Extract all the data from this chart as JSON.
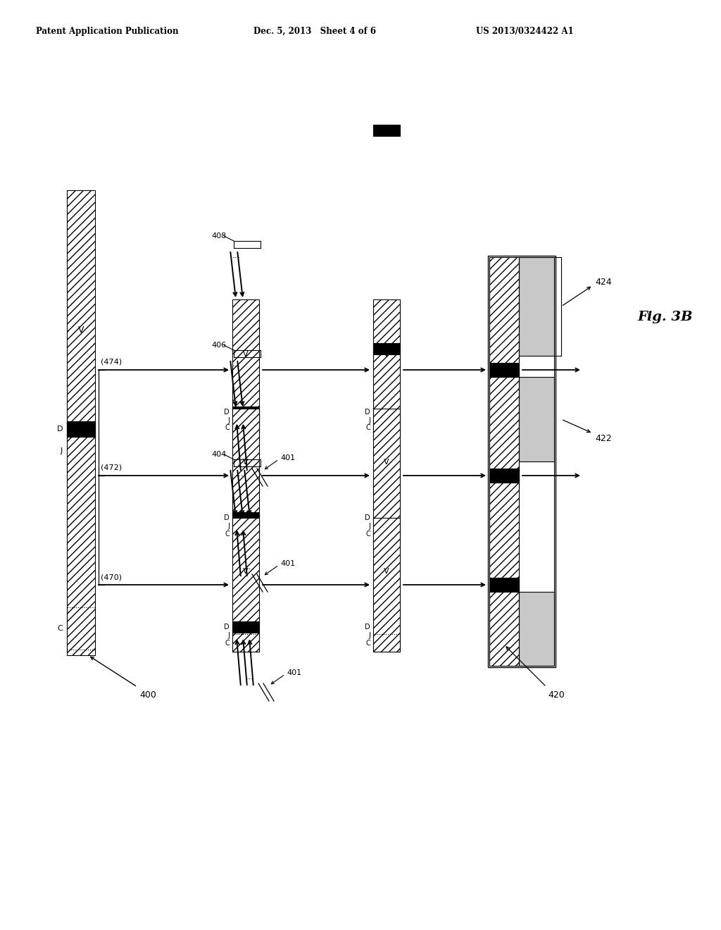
{
  "header_left": "Patent Application Publication",
  "header_mid": "Dec. 5, 2013   Sheet 4 of 6",
  "header_right": "US 2013/0324422 A1",
  "fig_label": "Fig. 3B",
  "bg_color": "#ffffff"
}
